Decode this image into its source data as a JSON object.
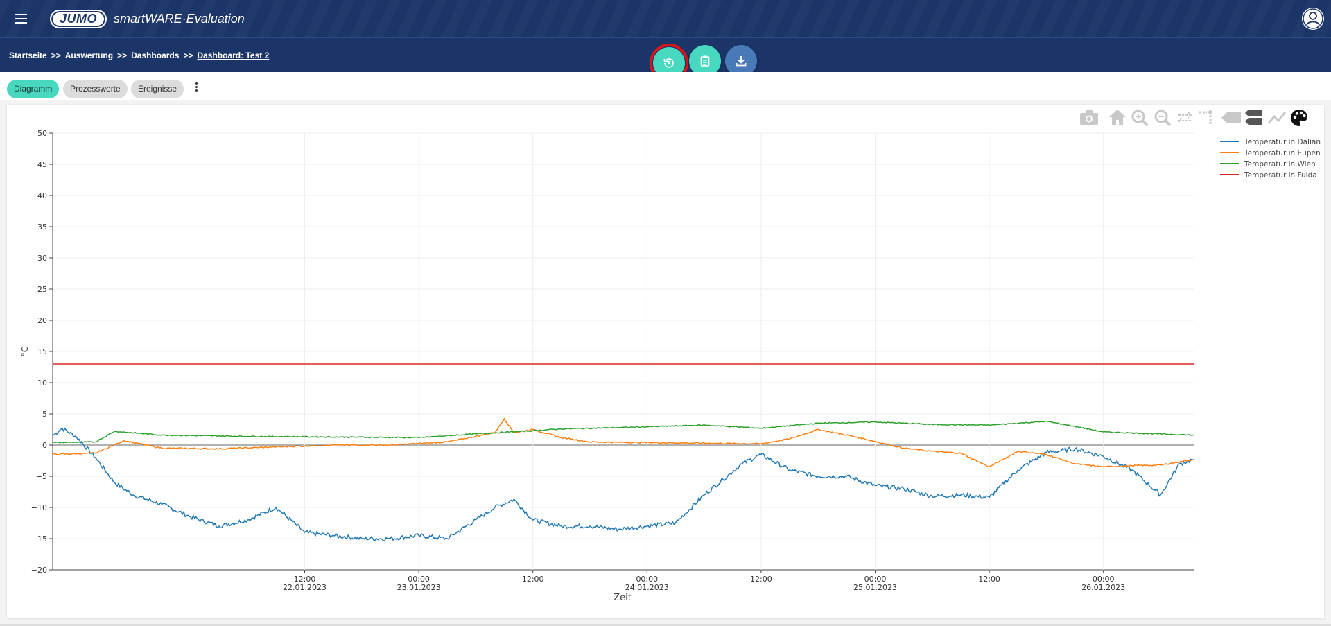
{
  "header": {
    "logo_text": "JUMO",
    "app_title": "smartWARE·Evaluation"
  },
  "breadcrumb": {
    "items": [
      "Startseite",
      "Auswertung",
      "Dashboards"
    ],
    "separator": ">>",
    "current": "Dashboard: Test 2"
  },
  "actions": [
    {
      "icon": "history-icon",
      "color": "#48d8c0",
      "highlighted": true
    },
    {
      "icon": "clipboard-icon",
      "color": "#48d8c0"
    },
    {
      "icon": "download-icon",
      "color": "#4a79b7"
    }
  ],
  "tabs": [
    {
      "label": "Diagramm",
      "active": true
    },
    {
      "label": "Prozesswerte",
      "active": false
    },
    {
      "label": "Ereignisse",
      "active": false
    }
  ],
  "toolbar_icons": [
    "camera-icon",
    "home-icon",
    "zoom-in-icon",
    "zoom-out-icon",
    "pan-icon",
    "spike-lines-icon",
    "hover-closest-icon",
    "hover-compare-icon",
    "line-icon",
    "palette-icon"
  ],
  "chart_data": {
    "type": "line",
    "xlabel": "Zeit",
    "ylabel": "°C",
    "ylim": [
      -20,
      50
    ],
    "yticks": [
      50,
      45,
      40,
      35,
      30,
      25,
      20,
      15,
      10,
      5,
      0,
      -5,
      -10,
      -15,
      -20
    ],
    "xlim": [
      "2023-01-21T09:30",
      "2023-01-26T09:30"
    ],
    "xticks": [
      {
        "time": "12:00",
        "date": "22.01.2023"
      },
      {
        "time": "00:00",
        "date": "23.01.2023"
      },
      {
        "time": "12:00",
        "date": ""
      },
      {
        "time": "00:00",
        "date": "24.01.2023"
      },
      {
        "time": "12:00",
        "date": ""
      },
      {
        "time": "00:00",
        "date": "25.01.2023"
      },
      {
        "time": "12:00",
        "date": ""
      },
      {
        "time": "00:00",
        "date": "26.01.2023"
      }
    ],
    "legend_position": "top-right",
    "series": [
      {
        "name": "Temperatur in Dalian",
        "color": "#1f77b4",
        "x": [
          "2023-01-21T09:30",
          "2023-01-21T10:30",
          "2023-01-21T12:00",
          "2023-01-21T14:00",
          "2023-01-21T16:00",
          "2023-01-21T18:00",
          "2023-01-21T21:00",
          "2023-01-22T00:00",
          "2023-01-22T03:00",
          "2023-01-22T06:00",
          "2023-01-22T09:00",
          "2023-01-22T12:00",
          "2023-01-22T15:00",
          "2023-01-22T18:00",
          "2023-01-22T21:00",
          "2023-01-23T00:00",
          "2023-01-23T03:00",
          "2023-01-23T06:00",
          "2023-01-23T08:00",
          "2023-01-23T10:00",
          "2023-01-23T12:00",
          "2023-01-23T15:00",
          "2023-01-23T18:00",
          "2023-01-23T21:00",
          "2023-01-24T00:00",
          "2023-01-24T03:00",
          "2023-01-24T06:00",
          "2023-01-24T08:00",
          "2023-01-24T10:00",
          "2023-01-24T12:00",
          "2023-01-24T15:00",
          "2023-01-24T18:00",
          "2023-01-24T21:00",
          "2023-01-25T00:00",
          "2023-01-25T03:00",
          "2023-01-25T06:00",
          "2023-01-25T09:00",
          "2023-01-25T12:00",
          "2023-01-25T15:00",
          "2023-01-25T18:00",
          "2023-01-25T21:00",
          "2023-01-26T00:00",
          "2023-01-26T03:00",
          "2023-01-26T06:00",
          "2023-01-26T08:00",
          "2023-01-26T09:30"
        ],
        "y": [
          1.5,
          2.7,
          1.3,
          -2,
          -6,
          -8,
          -9.5,
          -11.5,
          -13,
          -12,
          -10,
          -14,
          -14.5,
          -15,
          -15,
          -14.5,
          -15,
          -12,
          -10,
          -8.7,
          -12,
          -13,
          -13,
          -13.5,
          -13,
          -12.5,
          -8,
          -5.5,
          -3,
          -1.5,
          -4,
          -5,
          -5,
          -6.5,
          -7,
          -8.2,
          -8,
          -8.4,
          -4,
          -1.2,
          -0.6,
          -1.8,
          -4,
          -8,
          -3,
          -2.3
        ]
      },
      {
        "name": "Temperatur in Eupen",
        "color": "#ff7f0e",
        "x": [
          "2023-01-21T09:30",
          "2023-01-21T14:00",
          "2023-01-21T17:00",
          "2023-01-21T21:00",
          "2023-01-22T03:00",
          "2023-01-22T09:00",
          "2023-01-22T15:00",
          "2023-01-22T21:00",
          "2023-01-23T03:00",
          "2023-01-23T08:00",
          "2023-01-23T09:00",
          "2023-01-23T10:00",
          "2023-01-23T12:00",
          "2023-01-23T15:00",
          "2023-01-23T18:00",
          "2023-01-24T00:00",
          "2023-01-24T06:00",
          "2023-01-24T12:00",
          "2023-01-24T15:00",
          "2023-01-24T18:00",
          "2023-01-24T22:00",
          "2023-01-25T03:00",
          "2023-01-25T06:00",
          "2023-01-25T09:00",
          "2023-01-25T12:00",
          "2023-01-25T15:00",
          "2023-01-25T18:00",
          "2023-01-25T21:00",
          "2023-01-26T00:00",
          "2023-01-26T03:00",
          "2023-01-26T06:00",
          "2023-01-26T09:30"
        ],
        "y": [
          -1.5,
          -1.3,
          0.7,
          -0.5,
          -0.6,
          -0.3,
          0,
          0,
          0.5,
          2,
          4.2,
          2,
          2.5,
          1.2,
          0.5,
          0.4,
          0.3,
          0.2,
          1,
          2.5,
          1.3,
          -0.5,
          -1,
          -1.3,
          -3.5,
          -1,
          -1.5,
          -3,
          -3.5,
          -3.3,
          -3.2,
          -2.3
        ]
      },
      {
        "name": "Temperatur in Wien",
        "color": "#2ca02c",
        "x": [
          "2023-01-21T09:30",
          "2023-01-21T14:00",
          "2023-01-21T16:00",
          "2023-01-21T21:00",
          "2023-01-22T06:00",
          "2023-01-22T15:00",
          "2023-01-23T00:00",
          "2023-01-23T06:00",
          "2023-01-23T12:00",
          "2023-01-23T15:00",
          "2023-01-23T21:00",
          "2023-01-24T06:00",
          "2023-01-24T12:00",
          "2023-01-24T18:00",
          "2023-01-25T00:00",
          "2023-01-25T06:00",
          "2023-01-25T12:00",
          "2023-01-25T18:00",
          "2023-01-25T21:00",
          "2023-01-26T00:00",
          "2023-01-26T09:30"
        ],
        "y": [
          0.4,
          0.5,
          2.2,
          1.6,
          1.4,
          1.3,
          1.2,
          1.8,
          2.3,
          2.6,
          2.8,
          3.2,
          2.7,
          3.5,
          3.7,
          3.3,
          3.2,
          3.8,
          3.0,
          2.1,
          1.6
        ]
      },
      {
        "name": "Temperatur in Fulda",
        "color": "#d62728",
        "x": [
          "2023-01-21T09:30",
          "2023-01-26T09:30"
        ],
        "y": [
          13,
          13
        ]
      }
    ]
  }
}
